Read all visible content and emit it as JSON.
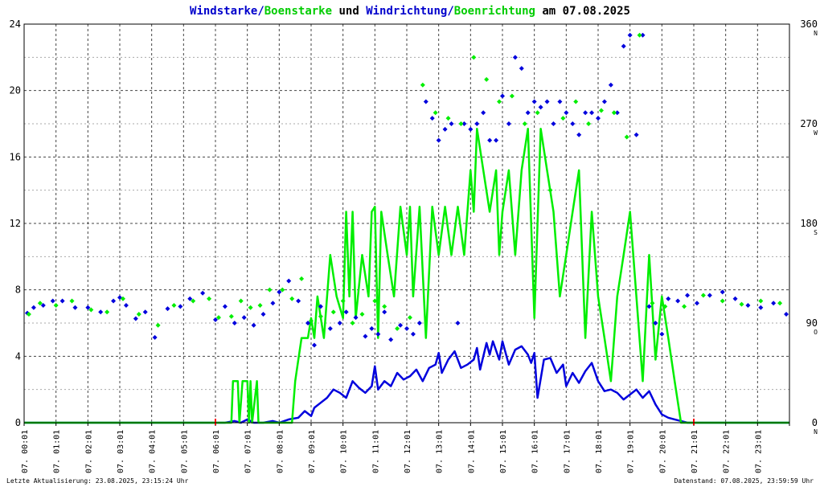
{
  "chart_data": {
    "type": "line",
    "title_parts": [
      {
        "text": "Windstarke"
      },
      {
        "text": "Boenstarke"
      },
      {
        "text": " und "
      },
      {
        "text": "Windrichtung"
      },
      {
        "text": "Boenrichtung"
      },
      {
        "text": " am 07.08.2025"
      }
    ],
    "footer_left": "Letzte Aktualisierung: 23.08.2025, 23:15:24 Uhr",
    "footer_right": "Datenstand: 07.08.2025, 23:59:59 Uhr",
    "x_unit": "hours",
    "xlim": [
      0,
      24
    ],
    "x_tick_labels": [
      "07. 00:01",
      "07. 01:01",
      "07. 02:01",
      "07. 03:01",
      "07. 04:01",
      "07. 05:01",
      "07. 06:01",
      "07. 07:01",
      "07. 08:01",
      "07. 09:01",
      "07. 10:01",
      "07. 11:01",
      "07. 12:01",
      "07. 13:01",
      "07. 14:01",
      "07. 15:01",
      "07. 16:01",
      "07. 17:01",
      "07. 18:01",
      "07. 19:01",
      "07. 20:01",
      "07. 21:01",
      "07. 22:01",
      "07. 23:01"
    ],
    "y_left": {
      "ylim": [
        0,
        24
      ],
      "ticks": [
        "0",
        "4",
        "8",
        "12",
        "16",
        "20",
        "24"
      ]
    },
    "y_right": {
      "ylim": [
        0,
        360
      ],
      "ticks": [
        "0",
        "90",
        "180",
        "270",
        "360"
      ],
      "compass": [
        "N",
        "O",
        "S",
        "W",
        "N"
      ]
    },
    "grid": true,
    "colors": {
      "wind": "#0000dd",
      "gust": "#00ee00",
      "axis": "#000000",
      "grid": "#444444",
      "marker": "#ff0000"
    },
    "series": [
      {
        "name": "Windstarke",
        "kind": "line",
        "x": [
          0,
          6.2,
          6.3,
          6.6,
          6.8,
          7.0,
          7.2,
          7.5,
          7.8,
          8.0,
          8.3,
          8.6,
          8.8,
          9.0,
          9.1,
          9.3,
          9.5,
          9.7,
          9.9,
          10.1,
          10.3,
          10.5,
          10.7,
          10.9,
          11.0,
          11.1,
          11.3,
          11.5,
          11.7,
          11.9,
          12.1,
          12.3,
          12.5,
          12.7,
          12.9,
          13.0,
          13.1,
          13.3,
          13.5,
          13.7,
          13.9,
          14.1,
          14.2,
          14.3,
          14.5,
          14.6,
          14.7,
          14.9,
          15.0,
          15.2,
          15.4,
          15.6,
          15.8,
          15.9,
          16.0,
          16.1,
          16.3,
          16.5,
          16.7,
          16.9,
          17.0,
          17.2,
          17.4,
          17.6,
          17.8,
          18.0,
          18.2,
          18.4,
          18.6,
          18.8,
          19.0,
          19.2,
          19.4,
          19.6,
          19.8,
          20.0,
          20.2,
          20.4,
          20.6,
          20.8,
          24
        ],
        "y": [
          0,
          0,
          0,
          0.1,
          0,
          0.2,
          0,
          0,
          0.1,
          0,
          0.2,
          0.3,
          0.7,
          0.4,
          0.9,
          1.2,
          1.5,
          2.0,
          1.8,
          1.5,
          2.5,
          2.1,
          1.8,
          2.2,
          3.4,
          2.0,
          2.5,
          2.2,
          3.0,
          2.6,
          2.8,
          3.2,
          2.5,
          3.3,
          3.5,
          4.2,
          3.0,
          3.8,
          4.3,
          3.3,
          3.5,
          3.8,
          4.5,
          3.2,
          4.8,
          4.1,
          4.9,
          3.8,
          4.9,
          3.5,
          4.4,
          4.6,
          4.1,
          3.6,
          4.2,
          1.5,
          3.8,
          3.9,
          3.0,
          3.5,
          2.2,
          3.0,
          2.4,
          3.1,
          3.6,
          2.5,
          1.9,
          2.0,
          1.8,
          1.4,
          1.7,
          2.0,
          1.5,
          1.9,
          1.1,
          0.5,
          0.3,
          0.2,
          0.1,
          0,
          0
        ]
      },
      {
        "name": "Boenstarke",
        "kind": "line",
        "x": [
          0,
          6.4,
          6.45,
          6.5,
          6.55,
          6.7,
          6.75,
          6.85,
          7.0,
          7.05,
          7.1,
          7.15,
          7.3,
          7.35,
          7.45,
          7.5,
          7.6,
          7.65,
          7.7,
          8.0,
          8.4,
          8.5,
          8.6,
          8.7,
          8.8,
          8.9,
          9.0,
          9.1,
          9.2,
          9.4,
          9.6,
          9.8,
          10.0,
          10.1,
          10.2,
          10.3,
          10.4,
          10.6,
          10.8,
          10.9,
          11.0,
          11.1,
          11.2,
          11.4,
          11.6,
          11.8,
          12.0,
          12.1,
          12.2,
          12.4,
          12.6,
          12.8,
          13.0,
          13.2,
          13.4,
          13.6,
          13.8,
          14.0,
          14.1,
          14.2,
          14.4,
          14.6,
          14.8,
          14.9,
          15.0,
          15.2,
          15.4,
          15.6,
          15.8,
          16.0,
          16.2,
          16.4,
          16.6,
          16.8,
          17.0,
          17.2,
          17.4,
          17.6,
          17.8,
          18.0,
          18.2,
          18.4,
          18.6,
          18.8,
          19.0,
          19.2,
          19.4,
          19.6,
          19.8,
          20.0,
          20.2,
          20.4,
          20.6,
          24
        ],
        "y": [
          0,
          0,
          0,
          0,
          2.5,
          2.5,
          0,
          2.5,
          2.5,
          0,
          2.5,
          0,
          2.5,
          0,
          0,
          0,
          0,
          0,
          0,
          0,
          0,
          2.5,
          3.8,
          5.1,
          5.1,
          5.1,
          6.3,
          5.1,
          7.6,
          5.1,
          10.1,
          7.6,
          6.3,
          12.7,
          7.6,
          12.7,
          6.3,
          10.1,
          7.6,
          12.7,
          13.0,
          5.1,
          12.7,
          10.1,
          7.6,
          13.0,
          10.1,
          13.0,
          7.6,
          13.0,
          5.1,
          13.0,
          10.1,
          13.0,
          10.1,
          13.0,
          10.1,
          15.2,
          12.7,
          17.7,
          15.2,
          12.7,
          15.2,
          10.1,
          12.7,
          15.2,
          10.1,
          15.2,
          17.7,
          6.3,
          17.7,
          15.2,
          12.7,
          7.6,
          10.1,
          12.7,
          15.2,
          5.1,
          12.7,
          7.6,
          5.1,
          2.5,
          7.6,
          10.1,
          12.7,
          7.6,
          2.5,
          10.1,
          3.8,
          7.6,
          5.1,
          2.5,
          0,
          0
        ]
      },
      {
        "name": "Windrichtung",
        "kind": "points",
        "x": [
          0.1,
          0.3,
          0.6,
          0.9,
          1.2,
          1.6,
          2.0,
          2.4,
          2.8,
          3.0,
          3.2,
          3.5,
          3.8,
          4.1,
          4.5,
          4.9,
          5.2,
          5.6,
          6.0,
          6.3,
          6.6,
          6.9,
          7.2,
          7.5,
          7.8,
          8.0,
          8.3,
          8.6,
          8.9,
          9.1,
          9.3,
          9.6,
          9.9,
          10.1,
          10.4,
          10.7,
          10.9,
          11.1,
          11.3,
          11.5,
          11.8,
          12.0,
          12.2,
          12.4,
          12.6,
          12.8,
          13.0,
          13.2,
          13.4,
          13.6,
          13.8,
          14.0,
          14.2,
          14.4,
          14.6,
          14.8,
          15.0,
          15.2,
          15.4,
          15.6,
          15.8,
          16.0,
          16.2,
          16.4,
          16.6,
          16.8,
          17.0,
          17.2,
          17.4,
          17.6,
          17.8,
          18.0,
          18.2,
          18.4,
          18.6,
          18.8,
          19.0,
          19.2,
          19.4,
          19.6,
          19.8,
          20.0,
          20.2,
          20.5,
          20.8,
          21.1,
          21.5,
          21.9,
          22.3,
          22.7,
          23.1,
          23.5,
          23.9
        ],
        "y": [
          99,
          104,
          106,
          110,
          110,
          104,
          104,
          100,
          110,
          113,
          106,
          94,
          100,
          77,
          103,
          105,
          112,
          117,
          93,
          105,
          90,
          95,
          88,
          98,
          108,
          118,
          128,
          110,
          90,
          70,
          105,
          85,
          90,
          100,
          95,
          78,
          85,
          80,
          100,
          75,
          88,
          85,
          80,
          90,
          290,
          275,
          255,
          265,
          270,
          90,
          270,
          265,
          270,
          280,
          255,
          255,
          295,
          270,
          330,
          320,
          280,
          290,
          285,
          290,
          270,
          290,
          280,
          270,
          260,
          280,
          280,
          275,
          290,
          305,
          280,
          340,
          350,
          260,
          350,
          105,
          90,
          80,
          112,
          110,
          115,
          108,
          115,
          118,
          112,
          106,
          104,
          108,
          98
        ]
      },
      {
        "name": "Boenrichtung",
        "kind": "points",
        "x": [
          0.15,
          0.5,
          1.0,
          1.5,
          2.1,
          2.6,
          3.1,
          3.6,
          4.2,
          4.7,
          5.3,
          5.8,
          6.1,
          6.5,
          6.8,
          7.1,
          7.4,
          7.7,
          8.1,
          8.4,
          8.7,
          9.0,
          9.3,
          9.7,
          10.0,
          10.3,
          10.6,
          11.0,
          11.3,
          11.7,
          12.1,
          12.5,
          12.9,
          13.3,
          13.7,
          14.1,
          14.5,
          14.9,
          15.3,
          15.7,
          16.1,
          16.5,
          16.9,
          17.3,
          17.7,
          18.1,
          18.5,
          18.9,
          19.3,
          19.7,
          20.1,
          20.7,
          21.3,
          21.9,
          22.5,
          23.1,
          23.7
        ],
        "y": [
          98,
          108,
          106,
          110,
          102,
          100,
          112,
          98,
          88,
          106,
          110,
          112,
          95,
          96,
          110,
          104,
          106,
          120,
          120,
          112,
          130,
          92,
          96,
          100,
          110,
          90,
          98,
          110,
          105,
          85,
          95,
          305,
          280,
          275,
          270,
          330,
          310,
          290,
          295,
          270,
          280,
          210,
          275,
          290,
          270,
          282,
          280,
          258,
          350,
          108,
          105,
          105,
          115,
          110,
          107,
          110,
          108
        ]
      }
    ]
  }
}
